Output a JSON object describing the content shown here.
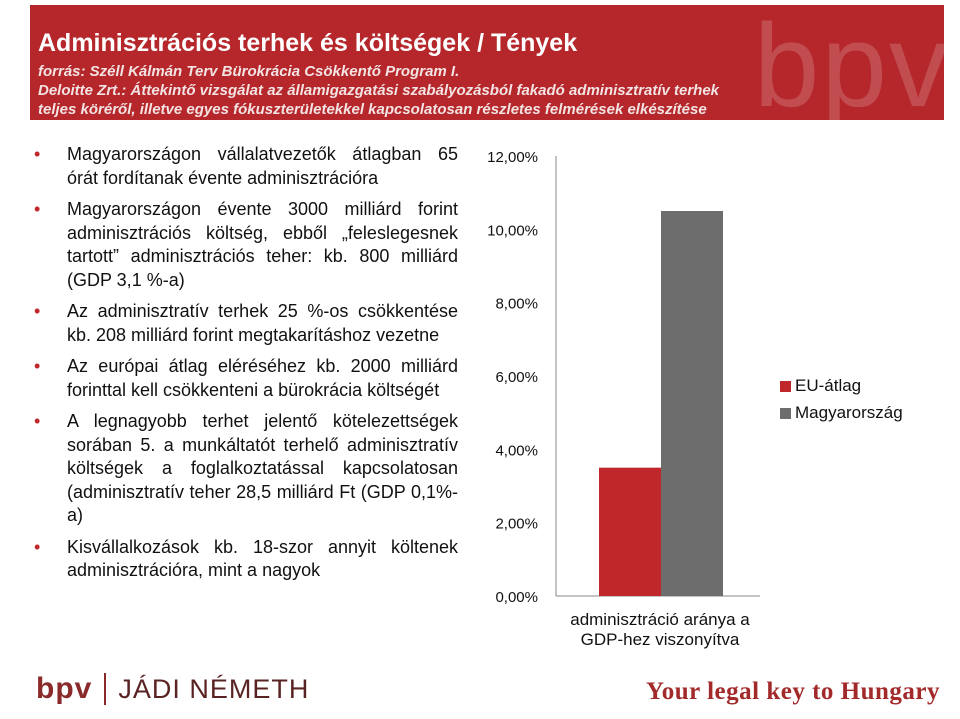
{
  "header": {
    "watermark": "bpv",
    "title": "Adminisztrációs terhek és költségek / Tények",
    "source_lines": [
      "forrás: Széll Kálmán Terv Bürokrácia Csökkentő Program I.",
      "Deloitte Zrt.: Áttekintő vizsgálat az államigazgatási szabályozásból fakadó adminisztratív terhek",
      "teljes köréről, illetve egyes fókuszterületekkel kapcsolatosan részletes felmérések elkészítése"
    ]
  },
  "bullets": [
    "Magyarországon vállalatvezetők átlagban 65 órát fordítanak évente adminisztrációra",
    "Magyarországon évente 3000 milliárd forint adminisztrációs költség, ebből „feleslegesnek tartott” adminisztrációs teher: kb. 800 milliárd (GDP 3,1 %-a)",
    "Az adminisztratív terhek 25 %-os csökkentése kb. 208 milliárd forint megtakarításhoz vezetne",
    "Az európai átlag eléréséhez kb. 2000 milliárd forinttal kell csökkenteni a bürokrácia költségét",
    "A legnagyobb terhet jelentő kötelezettségek sorában 5. a munkáltatót terhelő adminisztratív költségek a foglalkoztatással kapcsolatosan (adminisztratív teher 28,5 milliárd Ft (GDP 0,1%-a)",
    "Kisvállalkozások kb. 18-szor annyit költenek adminisztrációra, mint a nagyok"
  ],
  "chart_data": {
    "type": "bar",
    "categories": [
      "adminisztráció aránya a GDP-hez viszonyítva"
    ],
    "category_label_lines": [
      "adminisztráció aránya a",
      "GDP-hez viszonyítva"
    ],
    "series": [
      {
        "name": "EU-átlag",
        "color": "#c0272b",
        "values": [
          3.5
        ]
      },
      {
        "name": "Magyarország",
        "color": "#6d6d6d",
        "values": [
          10.5
        ]
      }
    ],
    "ylim": [
      0,
      12
    ],
    "yticks": [
      "0,00%",
      "2,00%",
      "4,00%",
      "6,00%",
      "8,00%",
      "10,00%",
      "12,00%"
    ],
    "legend_position": "right",
    "grid": false
  },
  "footer": {
    "left_brand": "bpv",
    "left_name": "JÁDI NÉMETH",
    "right_tagline": "Your legal key to Hungary"
  }
}
